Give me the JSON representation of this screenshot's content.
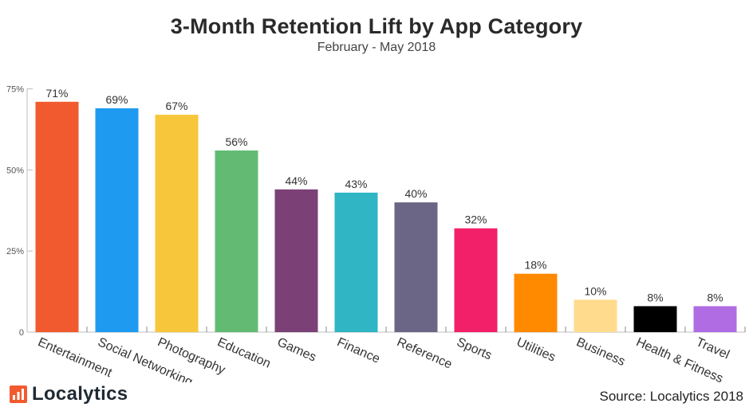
{
  "chart_data": {
    "type": "bar",
    "title": "3-Month Retention Lift by App Category",
    "subtitle": "February - May 2018",
    "xlabel": "",
    "ylabel": "",
    "ylim": [
      0,
      75
    ],
    "yticks": [
      {
        "value": 0,
        "label": "0"
      },
      {
        "value": 25,
        "label": "25%"
      },
      {
        "value": 50,
        "label": "50%"
      },
      {
        "value": 75,
        "label": "75%"
      }
    ],
    "grid": false,
    "categories": [
      "Entertainment",
      "Social Networking",
      "Photography",
      "Education",
      "Games",
      "Finance",
      "Reference",
      "Sports",
      "Utilities",
      "Business",
      "Health & Fitness",
      "Travel"
    ],
    "values": [
      71,
      69,
      67,
      56,
      44,
      43,
      40,
      32,
      18,
      10,
      8,
      8
    ],
    "value_labels": [
      "71%",
      "69%",
      "67%",
      "56%",
      "44%",
      "43%",
      "40%",
      "32%",
      "18%",
      "10%",
      "8%",
      "8%"
    ],
    "colors": [
      "#f15a2e",
      "#1e9bf0",
      "#f8c63a",
      "#63bb73",
      "#7b4177",
      "#2fb5c3",
      "#6c6686",
      "#f22069",
      "#ff8a00",
      "#ffdb8e",
      "#000000",
      "#b06de3"
    ]
  },
  "footer": {
    "logo_text": "Localytics",
    "source": "Source: Localytics 2018"
  }
}
